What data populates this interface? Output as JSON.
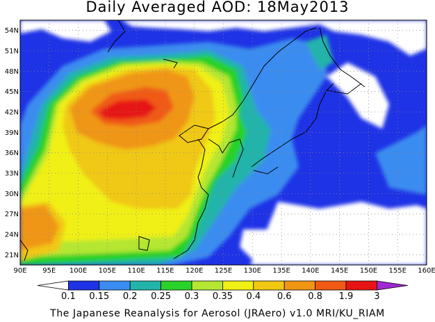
{
  "title": "Daily Averaged AOD: 18May2013",
  "map": {
    "region": "East Asia",
    "lon_range": [
      90,
      160
    ],
    "lat_range": [
      19.5,
      55.5
    ],
    "lon_ticks": [
      "90E",
      "95E",
      "100E",
      "105E",
      "110E",
      "115E",
      "120E",
      "125E",
      "130E",
      "135E",
      "140E",
      "145E",
      "150E",
      "155E",
      "160E"
    ],
    "lat_ticks": [
      "54N",
      "51N",
      "48N",
      "45N",
      "42N",
      "39N",
      "36N",
      "33N",
      "30N",
      "27N",
      "24N",
      "21N"
    ],
    "grid": "dotted"
  },
  "colorbar": {
    "labels": [
      "0.1",
      "0.15",
      "0.2",
      "0.25",
      "0.3",
      "0.35",
      "0.4",
      "0.6",
      "0.8",
      "1.9",
      "3"
    ],
    "colors": [
      "#ffffff",
      "#1e32e6",
      "#3a8cf0",
      "#22b4aa",
      "#28d228",
      "#b4e632",
      "#f0f014",
      "#f0c814",
      "#f09614",
      "#f05a14",
      "#e61414",
      "#a028d2"
    ]
  },
  "credit": "The Japanese Reanalysis for Aerosol (JRAero) v1.0 MRI/KU_RIAM"
}
